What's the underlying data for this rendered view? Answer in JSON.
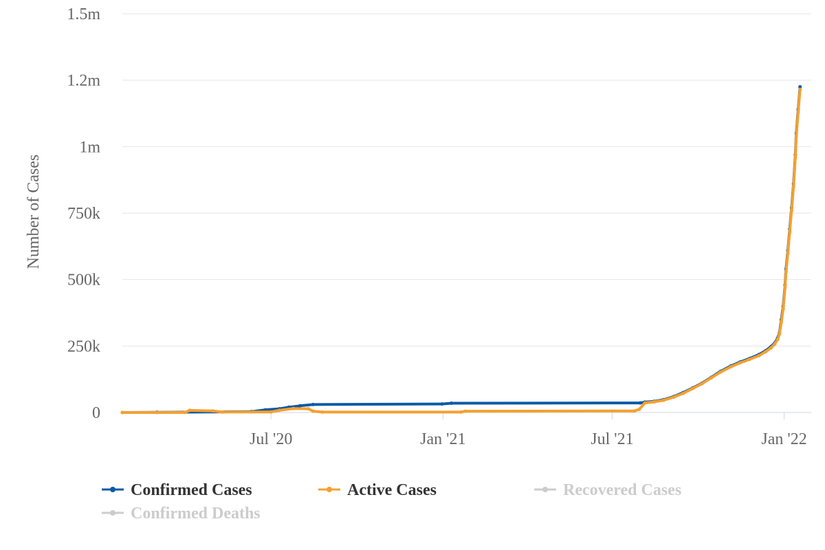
{
  "chart_data": {
    "type": "line",
    "title": "",
    "ylabel": "Number of Cases",
    "xlabel": "",
    "x_range": [
      "2020-01-24",
      "2022-01-30"
    ],
    "ylim": [
      0,
      1500000
    ],
    "y_ticks": [
      {
        "value": 0,
        "label": "0"
      },
      {
        "value": 250000,
        "label": "250k"
      },
      {
        "value": 500000,
        "label": "500k"
      },
      {
        "value": 750000,
        "label": "750k"
      },
      {
        "value": 1000000,
        "label": "1m"
      },
      {
        "value": 1250000,
        "label": "1.2m"
      },
      {
        "value": 1500000,
        "label": "1.5m"
      }
    ],
    "x_ticks": [
      {
        "date": "2020-07-01",
        "label": "Jul '20"
      },
      {
        "date": "2021-01-01",
        "label": "Jan '21"
      },
      {
        "date": "2021-07-01",
        "label": "Jul '21"
      },
      {
        "date": "2022-01-01",
        "label": "Jan '22"
      }
    ],
    "grid": true,
    "legend_placement": "bottom-left",
    "series": [
      {
        "name": "Confirmed Cases",
        "color": "#0b5aa6",
        "visible": true,
        "points": [
          [
            "2020-01-24",
            0
          ],
          [
            "2020-03-01",
            500
          ],
          [
            "2020-06-10",
            3000
          ],
          [
            "2020-06-25",
            10000
          ],
          [
            "2020-07-10",
            14000
          ],
          [
            "2020-07-20",
            20000
          ],
          [
            "2020-08-01",
            25000
          ],
          [
            "2020-08-15",
            30000
          ],
          [
            "2020-12-31",
            32000
          ],
          [
            "2021-01-10",
            35000
          ],
          [
            "2021-07-31",
            36000
          ],
          [
            "2021-08-05",
            39000
          ],
          [
            "2021-08-15",
            42000
          ],
          [
            "2021-08-25",
            48000
          ],
          [
            "2021-09-05",
            60000
          ],
          [
            "2021-09-15",
            75000
          ],
          [
            "2021-09-25",
            92000
          ],
          [
            "2021-10-05",
            110000
          ],
          [
            "2021-10-15",
            132000
          ],
          [
            "2021-10-25",
            155000
          ],
          [
            "2021-11-05",
            175000
          ],
          [
            "2021-11-15",
            190000
          ],
          [
            "2021-11-25",
            203000
          ],
          [
            "2021-12-05",
            218000
          ],
          [
            "2021-12-12",
            232000
          ],
          [
            "2021-12-18",
            248000
          ],
          [
            "2021-12-22",
            262000
          ],
          [
            "2021-12-25",
            280000
          ],
          [
            "2021-12-27",
            300000
          ],
          [
            "2021-12-29",
            350000
          ],
          [
            "2021-12-31",
            400000
          ],
          [
            "2022-01-02",
            480000
          ],
          [
            "2022-01-03",
            540000
          ],
          [
            "2022-01-05",
            610000
          ],
          [
            "2022-01-07",
            690000
          ],
          [
            "2022-01-09",
            770000
          ],
          [
            "2022-01-11",
            860000
          ],
          [
            "2022-01-13",
            970000
          ],
          [
            "2022-01-14",
            1050000
          ],
          [
            "2022-01-16",
            1140000
          ],
          [
            "2022-01-18",
            1225000
          ]
        ]
      },
      {
        "name": "Active Cases",
        "color": "#f5a030",
        "visible": true,
        "points": [
          [
            "2020-01-24",
            0
          ],
          [
            "2020-03-31",
            0
          ],
          [
            "2020-04-05",
            8000
          ],
          [
            "2020-04-30",
            6000
          ],
          [
            "2020-05-10",
            1500
          ],
          [
            "2020-07-01",
            2000
          ],
          [
            "2020-07-10",
            8000
          ],
          [
            "2020-07-25",
            15000
          ],
          [
            "2020-08-10",
            14000
          ],
          [
            "2020-08-15",
            5000
          ],
          [
            "2020-08-25",
            1500
          ],
          [
            "2021-01-20",
            1500
          ],
          [
            "2021-01-25",
            5000
          ],
          [
            "2021-07-25",
            6000
          ],
          [
            "2021-07-30",
            12000
          ],
          [
            "2021-08-05",
            36000
          ],
          [
            "2021-08-15",
            40000
          ],
          [
            "2021-08-25",
            46000
          ],
          [
            "2021-09-05",
            58000
          ],
          [
            "2021-09-15",
            72000
          ],
          [
            "2021-09-25",
            90000
          ],
          [
            "2021-10-05",
            108000
          ],
          [
            "2021-10-15",
            130000
          ],
          [
            "2021-10-25",
            152000
          ],
          [
            "2021-11-05",
            172000
          ],
          [
            "2021-11-15",
            187000
          ],
          [
            "2021-11-25",
            200000
          ],
          [
            "2021-12-05",
            214000
          ],
          [
            "2021-12-12",
            228000
          ],
          [
            "2021-12-18",
            243000
          ],
          [
            "2021-12-22",
            258000
          ],
          [
            "2021-12-25",
            275000
          ],
          [
            "2021-12-27",
            295000
          ],
          [
            "2021-12-29",
            340000
          ],
          [
            "2021-12-31",
            390000
          ],
          [
            "2022-01-02",
            470000
          ],
          [
            "2022-01-03",
            530000
          ],
          [
            "2022-01-05",
            600000
          ],
          [
            "2022-01-07",
            680000
          ],
          [
            "2022-01-09",
            760000
          ],
          [
            "2022-01-11",
            850000
          ],
          [
            "2022-01-13",
            960000
          ],
          [
            "2022-01-14",
            1040000
          ],
          [
            "2022-01-16",
            1130000
          ],
          [
            "2022-01-18",
            1215000
          ]
        ]
      },
      {
        "name": "Recovered Cases",
        "color": "#cccccc",
        "visible": false,
        "points": []
      },
      {
        "name": "Confirmed Deaths",
        "color": "#cccccc",
        "visible": false,
        "points": []
      }
    ]
  },
  "legend_hidden_color": "#cccccc",
  "legend_active_color": "#333333"
}
